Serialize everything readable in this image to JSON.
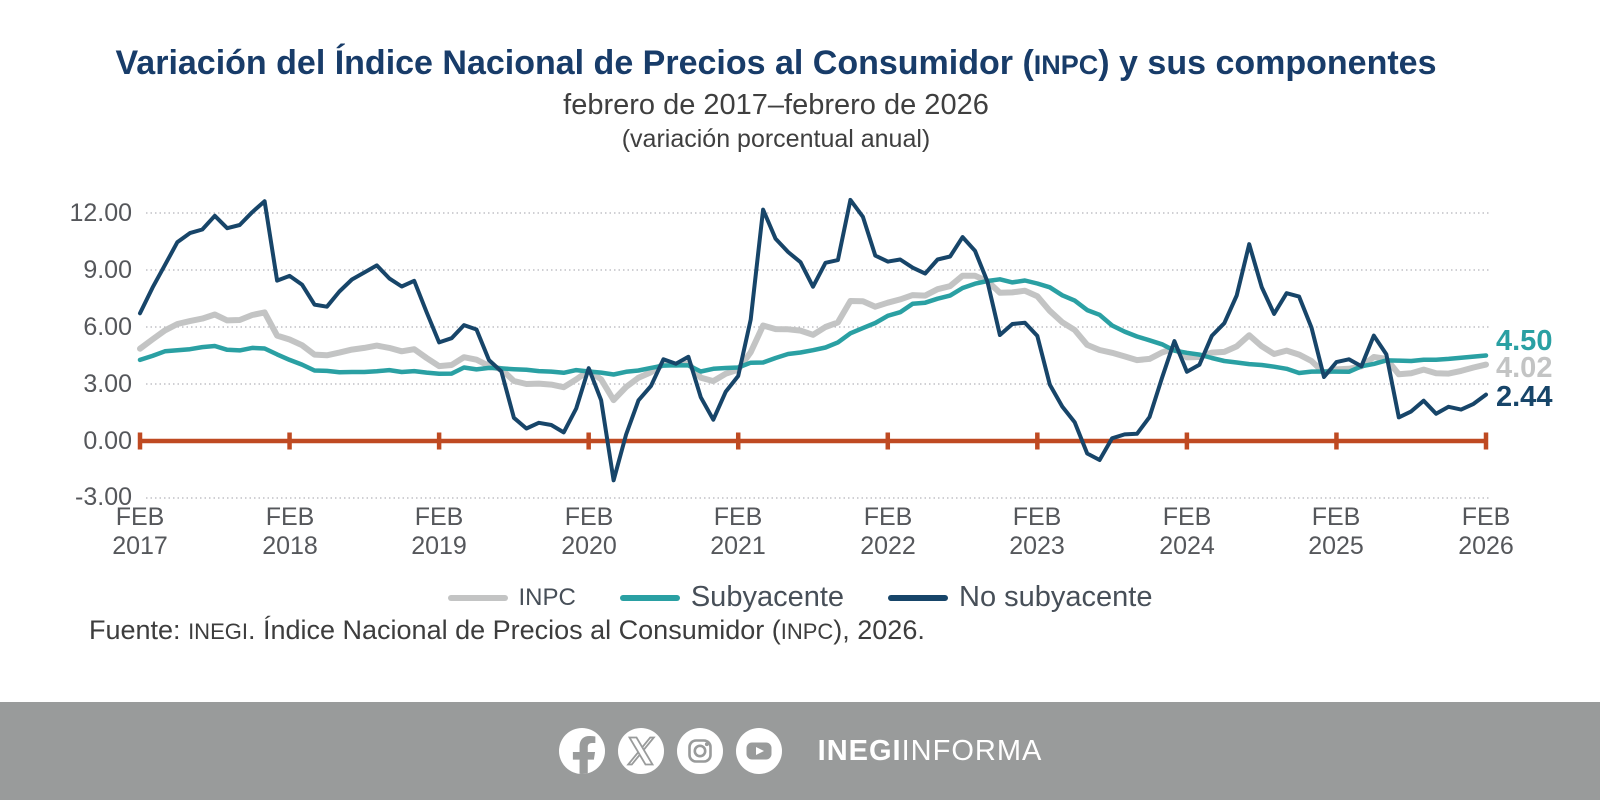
{
  "title": {
    "part1": "Variación del Índice Nacional de Precios al Consumidor (",
    "acronym": "INPC",
    "part2": ") y sus componentes"
  },
  "subtitle": "febrero de 2017–febrero de 2026",
  "note": "(variación porcentual anual)",
  "chart_data": {
    "type": "line",
    "x_axis": {
      "start": "FEB 2017",
      "end": "FEB 2026",
      "freq": "monthly",
      "points": 109
    },
    "x_tick_labels": [
      {
        "month": "FEB",
        "year": "2017"
      },
      {
        "month": "FEB",
        "year": "2018"
      },
      {
        "month": "FEB",
        "year": "2019"
      },
      {
        "month": "FEB",
        "year": "2020"
      },
      {
        "month": "FEB",
        "year": "2021"
      },
      {
        "month": "FEB",
        "year": "2022"
      },
      {
        "month": "FEB",
        "year": "2023"
      },
      {
        "month": "FEB",
        "year": "2024"
      },
      {
        "month": "FEB",
        "year": "2025"
      },
      {
        "month": "FEB",
        "year": "2026"
      }
    ],
    "y_ticks": [
      "12.00",
      "9.00",
      "6.00",
      "3.00",
      "0.00",
      "-3.00"
    ],
    "y_tick_values": [
      12,
      9,
      6,
      3,
      0,
      -3
    ],
    "ylim": [
      -3.5,
      13.5
    ],
    "grid": "dotted horizontal gridlines, solid red-orange zero axis with yearly tick marks",
    "legend_position": "bottom center",
    "zero_line_color": "#bf4a22",
    "series": [
      {
        "name": "INPC",
        "color": "#c3c4c4",
        "end_label": "4.02",
        "values": [
          4.86,
          5.35,
          5.82,
          6.16,
          6.31,
          6.44,
          6.66,
          6.35,
          6.37,
          6.63,
          6.77,
          5.55,
          5.34,
          5.04,
          4.55,
          4.51,
          4.65,
          4.81,
          4.9,
          5.02,
          4.9,
          4.72,
          4.83,
          4.37,
          3.94,
          4.0,
          4.41,
          4.28,
          3.95,
          3.78,
          3.16,
          3.0,
          3.02,
          2.97,
          2.83,
          3.24,
          3.7,
          3.25,
          2.15,
          2.84,
          3.33,
          3.62,
          4.05,
          4.01,
          4.09,
          3.33,
          3.15,
          3.54,
          3.76,
          4.67,
          6.08,
          5.89,
          5.88,
          5.81,
          5.59,
          6.0,
          6.24,
          7.37,
          7.36,
          7.07,
          7.28,
          7.45,
          7.68,
          7.65,
          7.99,
          8.15,
          8.7,
          8.7,
          8.41,
          7.8,
          7.82,
          7.91,
          7.62,
          6.85,
          6.25,
          5.84,
          5.06,
          4.79,
          4.64,
          4.45,
          4.26,
          4.32,
          4.66,
          4.88,
          4.4,
          4.42,
          4.65,
          4.69,
          4.98,
          5.57,
          4.99,
          4.58,
          4.76,
          4.55,
          4.21,
          3.59,
          3.77,
          3.8,
          3.93,
          4.42,
          4.32,
          3.51,
          3.57,
          3.76,
          3.57,
          3.55,
          3.69,
          3.87,
          4.02
        ]
      },
      {
        "name": "Subyacente",
        "color": "#2aa0a3",
        "end_label": "4.50",
        "values": [
          4.27,
          4.48,
          4.72,
          4.78,
          4.83,
          4.94,
          5.0,
          4.8,
          4.77,
          4.9,
          4.87,
          4.56,
          4.27,
          4.02,
          3.71,
          3.69,
          3.62,
          3.63,
          3.63,
          3.67,
          3.73,
          3.63,
          3.68,
          3.6,
          3.54,
          3.55,
          3.87,
          3.77,
          3.85,
          3.82,
          3.78,
          3.75,
          3.68,
          3.65,
          3.59,
          3.73,
          3.66,
          3.6,
          3.5,
          3.64,
          3.71,
          3.85,
          3.97,
          3.99,
          3.98,
          3.66,
          3.8,
          3.84,
          3.87,
          4.12,
          4.13,
          4.37,
          4.58,
          4.66,
          4.78,
          4.92,
          5.19,
          5.67,
          5.94,
          6.21,
          6.59,
          6.78,
          7.22,
          7.28,
          7.49,
          7.65,
          8.05,
          8.28,
          8.42,
          8.51,
          8.35,
          8.45,
          8.29,
          8.09,
          7.67,
          7.39,
          6.89,
          6.64,
          6.08,
          5.76,
          5.5,
          5.3,
          5.09,
          4.76,
          4.64,
          4.55,
          4.37,
          4.21,
          4.13,
          4.05,
          4.0,
          3.91,
          3.8,
          3.58,
          3.65,
          3.66,
          3.65,
          3.64,
          3.93,
          4.06,
          4.24,
          4.23,
          4.21,
          4.28,
          4.28,
          4.32,
          4.38,
          4.44,
          4.5
        ]
      },
      {
        "name": "No subyacente",
        "color": "#174569",
        "end_label": "2.44",
        "values": [
          6.72,
          8.07,
          9.26,
          10.47,
          10.94,
          11.13,
          11.85,
          11.2,
          11.37,
          12.04,
          12.62,
          8.44,
          8.69,
          8.23,
          7.18,
          7.07,
          7.87,
          8.5,
          8.87,
          9.24,
          8.56,
          8.13,
          8.43,
          6.78,
          5.19,
          5.41,
          6.1,
          5.87,
          4.26,
          3.66,
          1.22,
          0.66,
          0.96,
          0.84,
          0.45,
          1.71,
          3.83,
          2.15,
          -2.07,
          0.34,
          2.14,
          2.9,
          4.3,
          4.07,
          4.43,
          2.3,
          1.12,
          2.6,
          3.42,
          6.39,
          12.18,
          10.64,
          9.95,
          9.41,
          8.12,
          9.38,
          9.52,
          12.69,
          11.8,
          9.76,
          9.44,
          9.55,
          9.12,
          8.81,
          9.55,
          9.71,
          10.73,
          10.01,
          8.38,
          5.58,
          6.16,
          6.22,
          5.53,
          2.97,
          1.81,
          0.99,
          -0.66,
          -1.0,
          0.14,
          0.35,
          0.38,
          1.26,
          3.32,
          5.26,
          3.64,
          4.01,
          5.53,
          6.2,
          7.66,
          10.36,
          8.1,
          6.69,
          7.78,
          7.6,
          5.97,
          3.37,
          4.15,
          4.3,
          3.93,
          5.55,
          4.57,
          1.24,
          1.56,
          2.12,
          1.43,
          1.8,
          1.65,
          1.95,
          2.44
        ]
      }
    ]
  },
  "source": {
    "part1": "Fuente: ",
    "acr1": "INEGI",
    "part2": ". Índice Nacional de Precios al Consumidor (",
    "acr2": "INPC",
    "part3": "), 2026."
  },
  "footer": {
    "bg_color": "#999b9b",
    "icons": [
      "facebook-icon",
      "x-icon",
      "instagram-icon",
      "youtube-icon"
    ],
    "brand_bold": "INEGI",
    "brand_light": "INFORMA"
  }
}
